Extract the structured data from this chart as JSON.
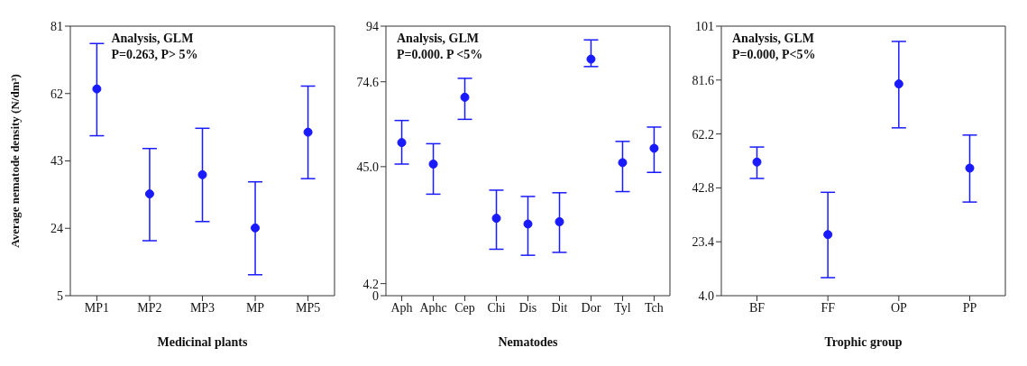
{
  "chart_data": [
    {
      "type": "scatter",
      "xlabel": "Medicinal plants",
      "ylabel": "Average nematode density (N/dm³)",
      "categories": [
        "MP1",
        "MP2",
        "MP3",
        "MP",
        "MP5"
      ],
      "color": "#1a1aff",
      "marker": "circle",
      "values": [
        63.3,
        33.7,
        39.1,
        24.1,
        51.1
      ],
      "errors": [
        [
          50.1,
          76.1
        ],
        [
          20.5,
          46.5
        ],
        [
          25.9,
          52.2
        ],
        [
          10.9,
          37.1
        ],
        [
          38.0,
          64.1
        ]
      ],
      "ylim": [
        5,
        81
      ],
      "yticks": [
        5,
        24,
        43,
        62,
        81
      ],
      "annotations": [
        "Analysis, GLM",
        "P=0.263, P> 5%"
      ]
    },
    {
      "type": "scatter",
      "xlabel": "Nematodes",
      "categories": [
        "Aph",
        "Aphc",
        "Cep",
        "Chi",
        "Dis",
        "Dit",
        "Dor",
        "Tyl",
        "Tch"
      ],
      "color": "#1a1aff",
      "marker": "circle",
      "values": [
        53.4,
        45.9,
        69.2,
        27.0,
        25.0,
        25.8,
        82.5,
        46.4,
        51.4
      ],
      "errors": [
        [
          45.9,
          61.1
        ],
        [
          35.4,
          53.0
        ],
        [
          61.5,
          75.8
        ],
        [
          16.2,
          36.8
        ],
        [
          14.1,
          34.6
        ],
        [
          15.1,
          35.9
        ],
        [
          79.9,
          89.2
        ],
        [
          36.3,
          53.8
        ],
        [
          43.0,
          58.8
        ]
      ],
      "ylim": [
        0,
        94
      ],
      "yticks": [
        0,
        4.2,
        {
          "value": 45,
          "label": "45.0"
        },
        74.6,
        94
      ],
      "annotations": [
        "Analysis, GLM",
        "P=0.000. P <5%"
      ]
    },
    {
      "type": "scatter",
      "xlabel": "Trophic group",
      "categories": [
        "BF",
        "FF",
        "OP",
        "PP"
      ],
      "color": "#1a1aff",
      "marker": "circle",
      "values": [
        52.1,
        26.0,
        80.2,
        49.9
      ],
      "errors": [
        [
          46.2,
          57.5
        ],
        [
          10.5,
          41.2
        ],
        [
          64.4,
          95.5
        ],
        [
          37.7,
          61.8
        ]
      ],
      "ylim": [
        4,
        101
      ],
      "yticks": [
        {
          "value": 4,
          "label": "4.0"
        },
        23.4,
        42.8,
        62.2,
        81.6,
        101
      ],
      "annotations": [
        "Analysis, GLM",
        "P=0.000, P<5%"
      ]
    }
  ]
}
